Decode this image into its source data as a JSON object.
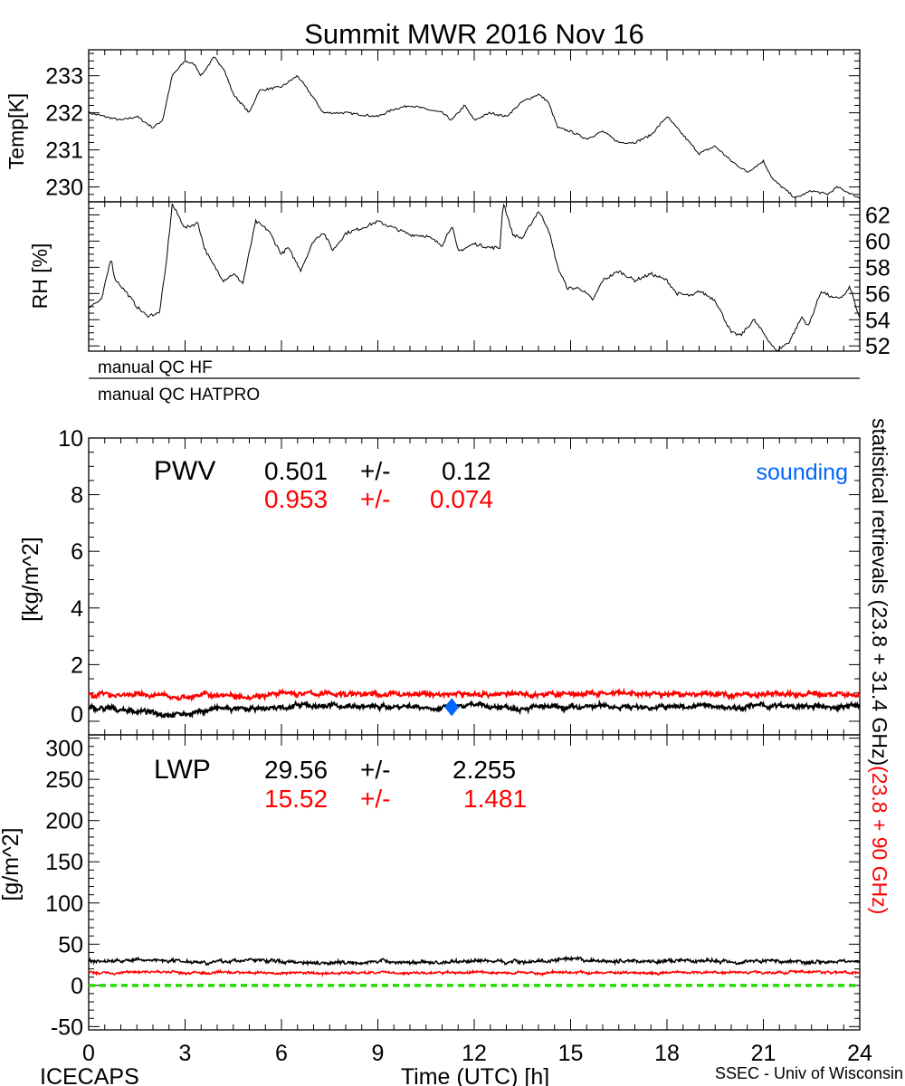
{
  "title": "Summit MWR 2016 Nov 16",
  "footer": {
    "left": "ICECAPS",
    "center": "Time (UTC) [h]",
    "right": "SSEC - Univ of Wisconsin"
  },
  "qc_labels": [
    "manual QC HF",
    "manual QC HATPRO"
  ],
  "right_label": {
    "black": "statistical retrievals (23.8 + 31.4 GHz)",
    "red": "(23.8 + 90 GHz)"
  },
  "colors": {
    "primary": "#000000",
    "secondary": "#ff0000",
    "sounding": "#0066ff",
    "zero_line": "#22dd00"
  },
  "chart_data": [
    {
      "type": "line",
      "panel": "temperature",
      "ylabel": "Temp[K]",
      "xlim": [
        0,
        24
      ],
      "ylim": [
        229.6,
        233.7
      ],
      "yticks": [
        230,
        231,
        232,
        233
      ],
      "xticks": [
        0,
        3,
        6,
        9,
        12,
        15,
        18,
        21,
        24
      ],
      "x": [
        0,
        0.5,
        1,
        1.5,
        2,
        2.3,
        2.6,
        3,
        3.3,
        3.5,
        3.9,
        4.2,
        4.5,
        5,
        5.3,
        6,
        6.5,
        7,
        7.3,
        8,
        9,
        9.5,
        10,
        11,
        11.3,
        11.7,
        12,
        12.5,
        13,
        13.5,
        14,
        14.3,
        14.6,
        15,
        15.5,
        16,
        16.5,
        17,
        17.5,
        18,
        18.5,
        19,
        19.5,
        20,
        20.5,
        21,
        21.3,
        22,
        22.5,
        23,
        23.3,
        24
      ],
      "y": [
        232.0,
        231.9,
        231.8,
        231.9,
        231.6,
        231.8,
        233.0,
        233.4,
        233.3,
        233.0,
        233.5,
        233.2,
        232.5,
        232.0,
        232.6,
        232.7,
        233.0,
        232.4,
        232.0,
        232.0,
        231.9,
        232.1,
        232.2,
        232.0,
        231.8,
        232.2,
        231.8,
        232.0,
        231.9,
        232.3,
        232.5,
        232.3,
        231.6,
        231.5,
        231.3,
        231.5,
        231.2,
        231.2,
        231.4,
        231.9,
        231.4,
        230.9,
        231.1,
        230.7,
        230.4,
        230.7,
        230.2,
        229.7,
        229.9,
        229.8,
        230.0,
        229.7
      ]
    },
    {
      "type": "line",
      "panel": "relative-humidity",
      "ylabel": "RH [%]",
      "xlim": [
        0,
        24
      ],
      "ylim": [
        51.6,
        63.0
      ],
      "yticks": [
        52,
        54,
        56,
        58,
        60,
        62
      ],
      "x": [
        0,
        0.4,
        0.7,
        0.8,
        1.2,
        1.5,
        1.8,
        2.2,
        2.4,
        2.6,
        3,
        3.4,
        3.6,
        3.8,
        4.2,
        4.5,
        4.8,
        5.2,
        5.6,
        6,
        6.2,
        6.6,
        7,
        7.3,
        7.6,
        8,
        8.5,
        9,
        9.5,
        10,
        10.5,
        11,
        11.3,
        11.5,
        12,
        12.5,
        12.8,
        12.9,
        13.2,
        13.5,
        14,
        14.3,
        14.6,
        14.9,
        15.3,
        15.7,
        16,
        16.5,
        17,
        17.5,
        18,
        18.3,
        18.8,
        19,
        19.5,
        20,
        20.3,
        20.7,
        21,
        21.4,
        21.8,
        22.2,
        22.4,
        22.8,
        23.2,
        23.5,
        23.7,
        24
      ],
      "y": [
        55,
        55.5,
        58.8,
        57.2,
        56,
        55,
        54.3,
        54.5,
        58,
        62.8,
        61,
        61.4,
        59.5,
        58.5,
        57,
        57.5,
        56.8,
        61.5,
        60.8,
        59,
        59.5,
        57.8,
        60,
        60.7,
        59.3,
        60.6,
        61,
        61.5,
        61,
        60.5,
        60.4,
        59.7,
        61.2,
        59.2,
        59.8,
        59.5,
        59.5,
        63,
        60.5,
        60.2,
        62.3,
        61,
        58,
        56.4,
        56.4,
        55.5,
        57,
        57.7,
        57,
        57.5,
        57,
        56,
        55.8,
        56.2,
        55.5,
        53,
        52.8,
        54,
        53,
        51.6,
        52.3,
        54.2,
        53.5,
        56.2,
        55.6,
        55.8,
        56.5,
        54
      ]
    },
    {
      "type": "line",
      "panel": "pwv",
      "ylabel": "[kg/m^2]",
      "label": "PWV",
      "xlim": [
        0,
        24
      ],
      "ylim": [
        -0.48,
        10
      ],
      "yticks": [
        0,
        2,
        4,
        6,
        8,
        10
      ],
      "x": [
        0,
        1,
        2,
        3,
        4,
        5,
        6,
        7,
        8,
        9,
        10,
        11,
        12,
        13,
        14,
        15,
        16,
        17,
        18,
        19,
        20,
        21,
        22,
        23,
        24
      ],
      "series": [
        {
          "stats": [
            "0.501",
            "+/-",
            "0.12"
          ],
          "color": "#000000",
          "values": [
            0.45,
            0.42,
            0.3,
            0.25,
            0.45,
            0.4,
            0.5,
            0.55,
            0.55,
            0.5,
            0.55,
            0.45,
            0.55,
            0.5,
            0.5,
            0.45,
            0.55,
            0.5,
            0.5,
            0.55,
            0.5,
            0.55,
            0.5,
            0.5,
            0.55
          ]
        },
        {
          "stats": [
            "0.953",
            "+/-",
            "0.074"
          ],
          "color": "#ff0000",
          "values": [
            0.95,
            0.95,
            0.92,
            0.85,
            0.95,
            0.9,
            0.97,
            0.97,
            0.97,
            0.95,
            0.96,
            0.95,
            0.97,
            0.96,
            0.95,
            0.96,
            0.97,
            0.95,
            0.95,
            0.96,
            0.95,
            0.96,
            0.95,
            0.95,
            0.95
          ]
        }
      ],
      "sounding": {
        "label": "sounding",
        "x": 11.3,
        "y": 0.5
      }
    },
    {
      "type": "line",
      "panel": "lwp",
      "ylabel": "[g/m^2]",
      "label": "LWP",
      "xlabel": "Time (UTC) [h]",
      "xlim": [
        0,
        24
      ],
      "ylim": [
        -54,
        304
      ],
      "yticks": [
        -50,
        0,
        50,
        100,
        150,
        200,
        250,
        300
      ],
      "x": [
        0,
        1,
        2,
        3,
        4,
        5,
        6,
        7,
        8,
        9,
        10,
        11,
        12,
        13,
        14,
        15,
        16,
        17,
        18,
        19,
        20,
        21,
        22,
        23,
        24
      ],
      "series": [
        {
          "stats": [
            "29.56",
            "+/-",
            "2.255"
          ],
          "color": "#000000",
          "values": [
            29,
            30,
            31,
            30,
            28,
            31,
            29,
            28,
            28,
            29,
            28,
            28,
            30,
            29,
            29,
            31,
            29,
            30,
            29,
            30,
            29,
            30,
            29,
            29,
            29
          ]
        },
        {
          "stats": [
            "15.52",
            "+/-",
            "1.481"
          ],
          "color": "#ff0000",
          "values": [
            15,
            15,
            17,
            15,
            15,
            16,
            15,
            15,
            15,
            16,
            15,
            15,
            16,
            15,
            15,
            16,
            15,
            16,
            15,
            16,
            16,
            16,
            16,
            16,
            16
          ]
        }
      ],
      "zero_line": 0
    }
  ]
}
